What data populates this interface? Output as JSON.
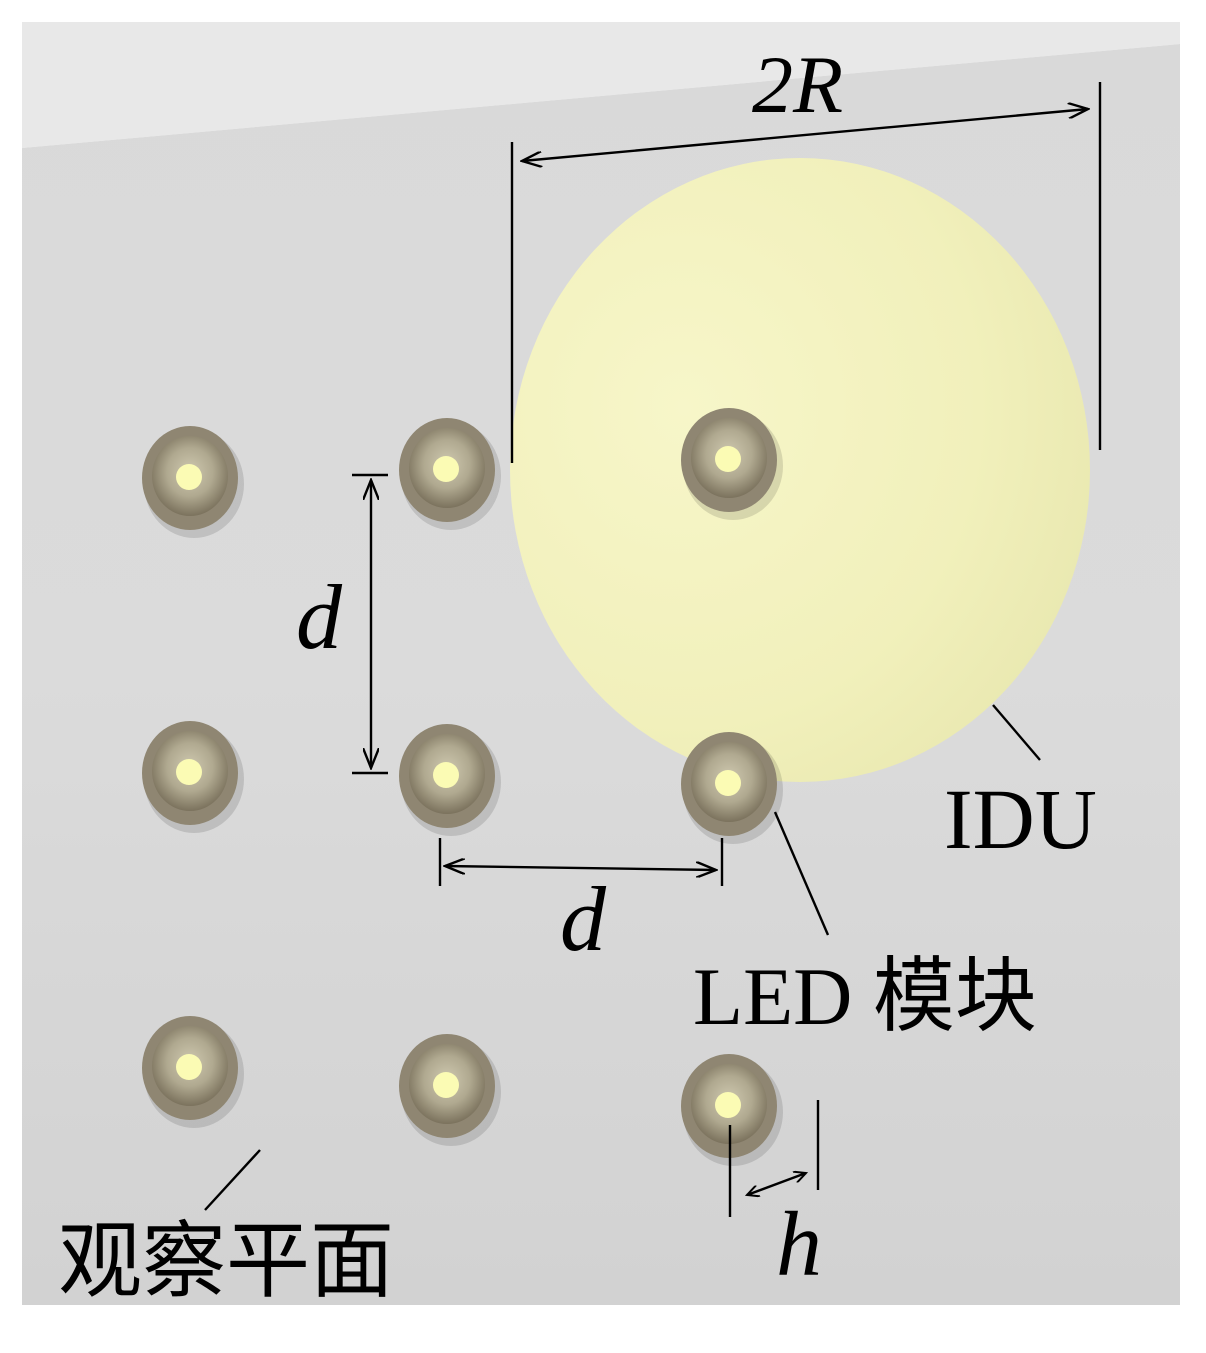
{
  "labels": {
    "two_r": "2R",
    "d_vertical": "d",
    "d_horizontal": "d",
    "h": "h",
    "idu": "IDU",
    "led_module": "LED 模块",
    "observation_plane": "观察平面"
  },
  "colors": {
    "wall": "#d4d4d4",
    "wall_top": "#e6e6e6",
    "idu_disc": "#f3f2c0",
    "led_rim": "#8f8672",
    "led_inner": "#b9b39c",
    "led_light": "#fbfbb4",
    "annotation": "#000000"
  },
  "leds": [
    {
      "name": "led-r1-c1"
    },
    {
      "name": "led-r1-c2"
    },
    {
      "name": "led-r1-c3-idu"
    },
    {
      "name": "led-r2-c1"
    },
    {
      "name": "led-r2-c2"
    },
    {
      "name": "led-r2-c3"
    },
    {
      "name": "led-r3-c1"
    },
    {
      "name": "led-r3-c2"
    },
    {
      "name": "led-r3-c3"
    }
  ]
}
